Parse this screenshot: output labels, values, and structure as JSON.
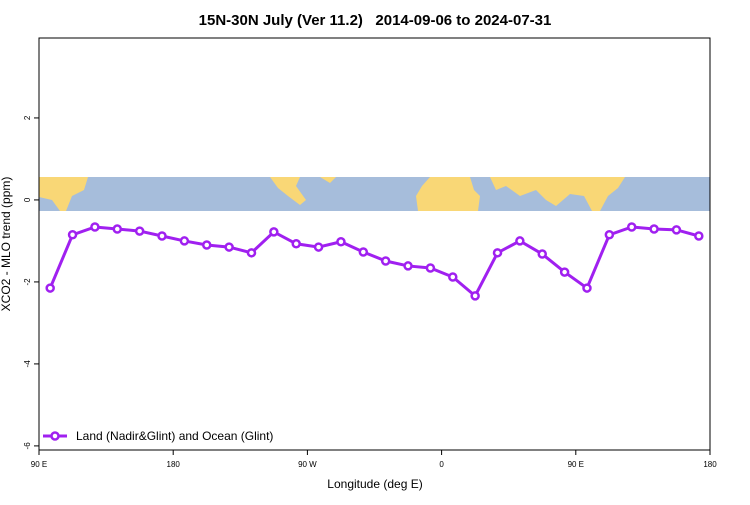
{
  "chart_data": {
    "type": "line",
    "title": "15N-30N July (Ver 11.2)   2014-09-06 to 2024-07-31",
    "xlabel": "Longitude (deg E)",
    "ylabel": "XCO2 - MLO trend (ppm)",
    "x": [
      97.5,
      112.5,
      127.5,
      142.5,
      157.5,
      172.5,
      187.5,
      202.5,
      217.5,
      232.5,
      247.5,
      262.5,
      277.5,
      292.5,
      307.5,
      322.5,
      337.5,
      352.5,
      367.5,
      382.5,
      397.5,
      412.5,
      427.5,
      442.5,
      457.5,
      472.5,
      487.5,
      502.5,
      517.5,
      532.5
    ],
    "series": [
      {
        "name": "Land (Nadir&Glint) and Ocean (Glint)",
        "color": "#a020f0",
        "values": [
          -2.15,
          -0.85,
          -0.66,
          -0.71,
          -0.76,
          -0.88,
          -1.0,
          -1.1,
          -1.15,
          -1.29,
          -0.78,
          -1.07,
          -1.15,
          -1.02,
          -1.27,
          -1.49,
          -1.61,
          -1.66,
          -1.88,
          -2.34,
          -1.29,
          -1.0,
          -1.32,
          -1.76,
          -2.15,
          -0.85,
          -0.66,
          -0.71,
          -0.73,
          -0.88
        ]
      }
    ],
    "xlim": [
      90,
      540
    ],
    "xticks": [
      {
        "value": 90,
        "label": "90 E"
      },
      {
        "value": 180,
        "label": "180"
      },
      {
        "value": 270,
        "label": "90 W"
      },
      {
        "value": 360,
        "label": "0"
      },
      {
        "value": 450,
        "label": "90 E"
      },
      {
        "value": 540,
        "label": "180"
      }
    ],
    "ylim": [
      -6.1,
      3.95
    ],
    "yticks": [
      -6,
      -4,
      -2,
      0,
      2
    ],
    "legend": "bottom-left"
  }
}
